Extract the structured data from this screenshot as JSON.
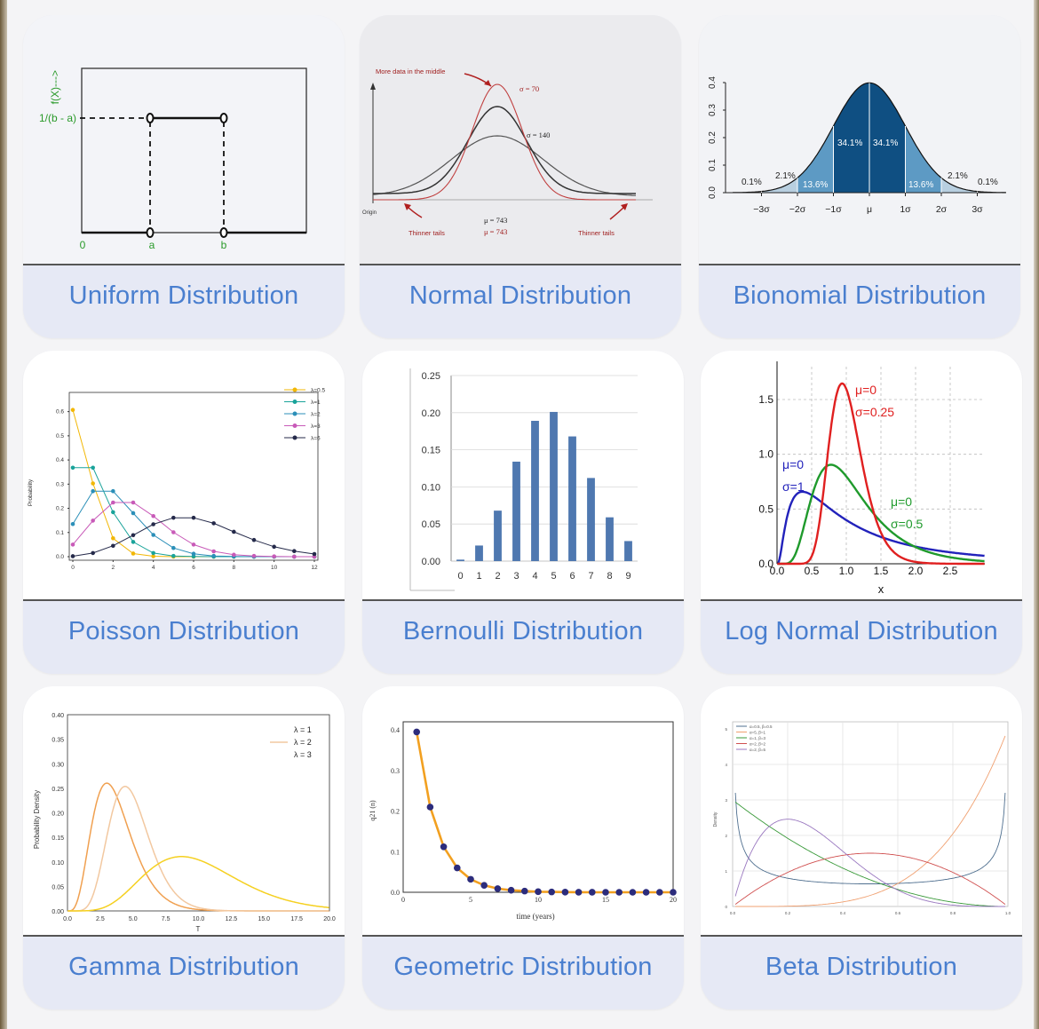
{
  "cards": [
    {
      "title": "Uniform Distribution"
    },
    {
      "title": "Normal Distribution"
    },
    {
      "title": "Bionomial Distribution"
    },
    {
      "title": "Poisson Distribution"
    },
    {
      "title": "Bernoulli Distribution"
    },
    {
      "title": "Log Normal Distribution"
    },
    {
      "title": "Gamma Distribution"
    },
    {
      "title": "Geometric Distribution"
    },
    {
      "title": "Beta Distribution"
    }
  ],
  "uniform": {
    "ylabel": "f(X)--->",
    "height_label": "1/(b - a)",
    "x_labels": [
      "0",
      "a",
      "b"
    ]
  },
  "normal": {
    "annotation_top": "More data in the middle",
    "sigma1": "σ = 70",
    "sigma2": "σ = 140",
    "mu1": "μ = 743",
    "mu2": "μ = 743",
    "origin": "Origin",
    "tail_left": "Thinner tails",
    "tail_right": "Thinner tails"
  },
  "binomial": {
    "y_ticks": [
      "0.0",
      "0.1",
      "0.2",
      "0.3",
      "0.4"
    ],
    "x_ticks": [
      "−3σ",
      "−2σ",
      "−1σ",
      "μ",
      "1σ",
      "2σ",
      "3σ"
    ],
    "pct": [
      "0.1%",
      "2.1%",
      "13.6%",
      "34.1%",
      "34.1%",
      "13.6%",
      "2.1%",
      "0.1%"
    ]
  },
  "chart_data": [
    {
      "type": "line",
      "title": "Poisson Distribution",
      "ylabel": "Probability",
      "xlabel": "",
      "x": [
        0,
        1,
        2,
        3,
        4,
        5,
        6,
        7,
        8,
        9,
        10,
        11,
        12
      ],
      "xlim": [
        0,
        12
      ],
      "ylim": [
        0,
        0.65
      ],
      "x_ticks": [
        "0",
        "2",
        "4",
        "6",
        "8",
        "10",
        "12"
      ],
      "y_ticks": [
        "0.0",
        "0.1",
        "0.2",
        "0.3",
        "0.4",
        "0.5",
        "0.6"
      ],
      "series": [
        {
          "name": "λ=0.5",
          "color": "#f2b705",
          "values": [
            0.607,
            0.303,
            0.076,
            0.013,
            0.002,
            0,
            0,
            0,
            0,
            0,
            0,
            0,
            0
          ]
        },
        {
          "name": "λ=1",
          "color": "#1aa39a",
          "values": [
            0.368,
            0.368,
            0.184,
            0.061,
            0.015,
            0.003,
            0.001,
            0,
            0,
            0,
            0,
            0,
            0
          ]
        },
        {
          "name": "λ=2",
          "color": "#2b8fb8",
          "values": [
            0.135,
            0.271,
            0.271,
            0.18,
            0.09,
            0.036,
            0.012,
            0.003,
            0.001,
            0,
            0,
            0,
            0
          ]
        },
        {
          "name": "λ=3",
          "color": "#c85ab8",
          "values": [
            0.05,
            0.149,
            0.224,
            0.224,
            0.168,
            0.101,
            0.05,
            0.022,
            0.008,
            0.003,
            0.001,
            0,
            0
          ]
        },
        {
          "name": "λ=6",
          "color": "#252a4a",
          "values": [
            0.002,
            0.015,
            0.045,
            0.089,
            0.134,
            0.161,
            0.161,
            0.138,
            0.103,
            0.069,
            0.041,
            0.023,
            0.011
          ]
        }
      ]
    },
    {
      "type": "bar",
      "title": "Bernoulli Distribution",
      "categories": [
        "0",
        "1",
        "2",
        "3",
        "4",
        "5",
        "6",
        "7",
        "8",
        "9"
      ],
      "values": [
        0.002,
        0.021,
        0.068,
        0.134,
        0.189,
        0.201,
        0.168,
        0.112,
        0.059,
        0.027
      ],
      "ylim": [
        0,
        0.25
      ],
      "y_ticks": [
        "0.00",
        "0.05",
        "0.10",
        "0.15",
        "0.20",
        "0.25"
      ],
      "color": "#4f78b0"
    },
    {
      "type": "line",
      "title": "Log Normal Distribution",
      "xlabel": "x",
      "xlim": [
        0,
        3.0
      ],
      "ylim": [
        0,
        1.8
      ],
      "x_ticks": [
        "0.0",
        "0.5",
        "1.0",
        "1.5",
        "2.0",
        "2.5"
      ],
      "y_ticks": [
        "0.0",
        "0.5",
        "1.0",
        "1.5"
      ],
      "series": [
        {
          "name": "μ=0 σ=1",
          "color": "#2222bb",
          "mu": 0,
          "sigma": 1
        },
        {
          "name": "μ=0 σ=0.5",
          "color": "#1f9a2c",
          "mu": 0,
          "sigma": 0.5
        },
        {
          "name": "μ=0 σ=0.25",
          "color": "#e02020",
          "mu": 0,
          "sigma": 0.25
        }
      ],
      "labels": [
        {
          "mu": "μ=0",
          "sigma": "σ=1"
        },
        {
          "mu": "μ=0",
          "sigma": "σ=0.5"
        },
        {
          "mu": "μ=0",
          "sigma": "σ=0.25"
        }
      ]
    },
    {
      "type": "line",
      "title": "Gamma Distribution",
      "xlabel": "T",
      "ylabel": "Probability Density",
      "xlim": [
        0,
        20
      ],
      "ylim": [
        0,
        0.4
      ],
      "x_ticks": [
        "0.0",
        "2.5",
        "5.0",
        "7.5",
        "10.0",
        "12.5",
        "15.0",
        "17.5",
        "20.0"
      ],
      "y_ticks": [
        "0.00",
        "0.05",
        "0.10",
        "0.15",
        "0.20",
        "0.25",
        "0.30",
        "0.35",
        "0.40"
      ],
      "series": [
        {
          "name": "λ = 1",
          "color": "#f0a050",
          "k": 5,
          "theta": 0.75
        },
        {
          "name": "λ = 2",
          "color": "#f2c8a0",
          "k": 9,
          "theta": 0.55
        },
        {
          "name": "λ = 3",
          "color": "#f5d020",
          "k": 7,
          "theta": 1.45
        }
      ]
    },
    {
      "type": "line",
      "title": "Geometric Distribution",
      "xlabel": "time (years)",
      "ylabel": "q21 (n)",
      "x": [
        1,
        2,
        3,
        4,
        5,
        6,
        7,
        8,
        9,
        10,
        11,
        12,
        13,
        14,
        15,
        16,
        17,
        18,
        19,
        20
      ],
      "values": [
        0.395,
        0.21,
        0.112,
        0.06,
        0.032,
        0.017,
        0.009,
        0.005,
        0.003,
        0.0014,
        0.0008,
        0.0004,
        0.0002,
        0.0001,
        0,
        0,
        0,
        0,
        0,
        0
      ],
      "xlim": [
        0,
        20
      ],
      "ylim": [
        0,
        0.42
      ],
      "x_ticks": [
        "0",
        "5",
        "10",
        "15",
        "20"
      ],
      "y_ticks": [
        "0.0",
        "0.1",
        "0.2",
        "0.3",
        "0.4"
      ],
      "line_color": "#f2a020",
      "marker_color": "#2c2c7c"
    },
    {
      "type": "line",
      "title": "Beta Distribution",
      "ylabel": "Density",
      "xlim": [
        0,
        1
      ],
      "ylim": [
        0,
        5.2
      ],
      "x_ticks": [
        "0.0",
        "0.2",
        "0.4",
        "0.6",
        "0.8",
        "1.0"
      ],
      "y_ticks": [
        "0",
        "1",
        "2",
        "3",
        "4",
        "5"
      ],
      "series": [
        {
          "name": "α=0.5, β=0.5",
          "color": "#4f6f8f",
          "a": 0.5,
          "b": 0.5
        },
        {
          "name": "α=5, β=1",
          "color": "#f0a070",
          "a": 5,
          "b": 1
        },
        {
          "name": "α=1, β=3",
          "color": "#3a9a3a",
          "a": 1,
          "b": 3
        },
        {
          "name": "α=2, β=2",
          "color": "#d05050",
          "a": 2,
          "b": 2
        },
        {
          "name": "α=2, β=5",
          "color": "#9a78c0",
          "a": 2,
          "b": 5
        }
      ]
    }
  ]
}
